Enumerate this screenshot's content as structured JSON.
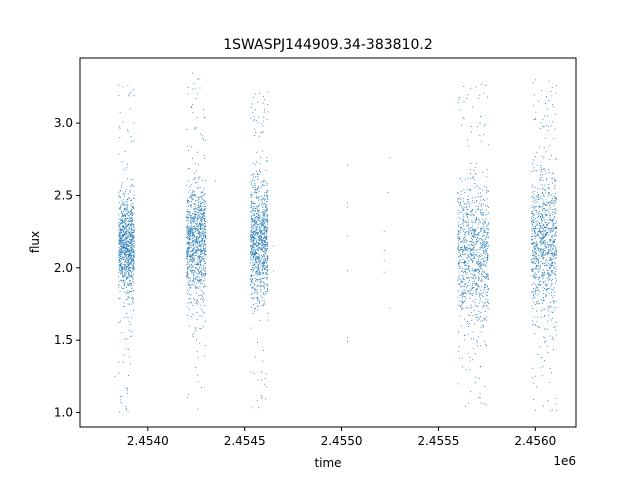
{
  "chart_data": {
    "type": "scatter",
    "title": "1SWASPJ144909.34-383810.2",
    "xlabel": "time",
    "ylabel": "flux",
    "x_offset_label": "1e6",
    "xlim": [
      2.45365,
      2.45621
    ],
    "ylim": [
      0.9,
      3.45
    ],
    "x_ticks": [
      2.454,
      2.4545,
      2.455,
      2.4555,
      2.456
    ],
    "x_tick_labels": [
      "2.4540",
      "2.4545",
      "2.4550",
      "2.4555",
      "2.4560"
    ],
    "y_ticks": [
      1.0,
      1.5,
      2.0,
      2.5,
      3.0
    ],
    "y_tick_labels": [
      "1.0",
      "1.5",
      "2.0",
      "2.5",
      "3.0"
    ],
    "grid": false,
    "legend": "none",
    "marker_color": "#1f77b4",
    "series": [
      {
        "name": "",
        "clusters": [
          {
            "x_range": [
              2.45385,
              2.45393
            ],
            "center": 2.15,
            "spread_min": 1.65,
            "spread_max": 2.62,
            "outlier_min": 1.0,
            "outlier_max": 3.28
          },
          {
            "x_range": [
              2.4542,
              2.4543
            ],
            "center": 2.18,
            "spread_min": 1.65,
            "spread_max": 2.75,
            "outlier_min": 1.02,
            "outlier_max": 3.35
          },
          {
            "x_range": [
              2.45453,
              2.45462
            ],
            "center": 2.2,
            "spread_min": 1.7,
            "spread_max": 2.9,
            "outlier_min": 1.0,
            "outlier_max": 3.22
          },
          {
            "x_range": [
              2.4556,
              2.45576
            ],
            "center": 2.1,
            "spread_min": 1.45,
            "spread_max": 2.85,
            "outlier_min": 1.03,
            "outlier_max": 3.33
          },
          {
            "x_range": [
              2.45598,
              2.45611
            ],
            "center": 2.15,
            "spread_min": 1.45,
            "spread_max": 2.95,
            "outlier_min": 1.0,
            "outlier_max": 3.33
          }
        ],
        "isolated_points": [
          {
            "x": 2.45465,
            "y": 2.15
          },
          {
            "x": 2.45465,
            "y": 1.98
          },
          {
            "x": 2.45503,
            "y": 2.71
          },
          {
            "x": 2.45503,
            "y": 2.45
          },
          {
            "x": 2.45503,
            "y": 2.42
          },
          {
            "x": 2.45503,
            "y": 2.22
          },
          {
            "x": 2.45503,
            "y": 1.98
          },
          {
            "x": 2.45503,
            "y": 1.52
          },
          {
            "x": 2.45503,
            "y": 1.49
          },
          {
            "x": 2.45522,
            "y": 2.25
          },
          {
            "x": 2.45522,
            "y": 2.12
          },
          {
            "x": 2.45522,
            "y": 2.05
          },
          {
            "x": 2.45522,
            "y": 1.97
          },
          {
            "x": 2.45524,
            "y": 2.52
          },
          {
            "x": 2.45525,
            "y": 2.76
          },
          {
            "x": 2.45525,
            "y": 1.72
          },
          {
            "x": 2.45435,
            "y": 2.6
          },
          {
            "x": 2.45383,
            "y": 1.25
          }
        ]
      }
    ]
  }
}
